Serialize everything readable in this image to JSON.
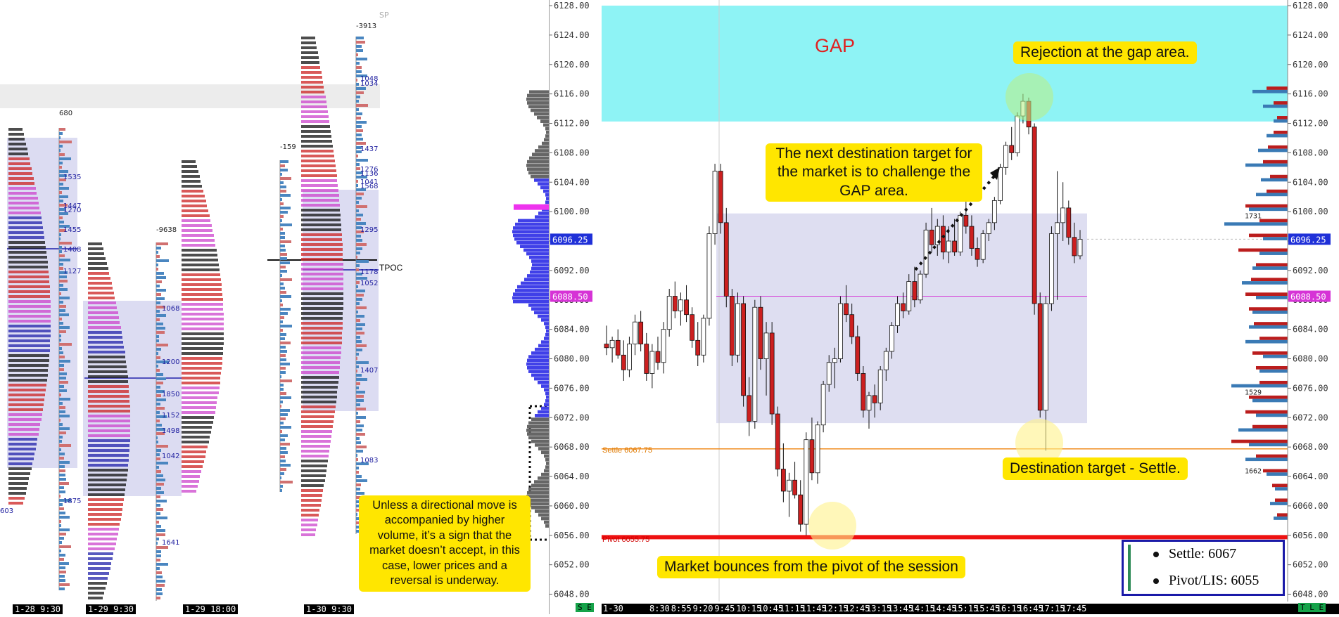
{
  "annotations": {
    "gap": "GAP",
    "gap_rejection": "Rejection at the gap area.",
    "next_target": "The next destination target for the market is to challenge the GAP area.",
    "settle_target": "Destination target - Settle.",
    "pivot_bounce": "Market bounces from the pivot of the session",
    "volume_note": "Unless a directional move is accompanied by higher volume, it’s a sign that the market doesn’t accept, in this case, lower prices and a reversal is underway."
  },
  "levels": {
    "settle_label": "Settle  6067.75",
    "pivot_label": "Pivot  6055.75",
    "tpoc_label": "TPOC",
    "sp_label": "SP"
  },
  "legend": {
    "settle": "Settle: 6067",
    "pivot": "Pivot/LIS: 6055"
  },
  "price_tags": {
    "current": "6096.25",
    "poc": "6088.50",
    "current_right": "6096.25",
    "poc_right": "6088.50"
  },
  "bottom_bar": {
    "se": "S E",
    "tle": "T L E",
    "left_dates": [
      "1-28 9:30",
      "1-29 9:30",
      "1-29 18:00",
      "1-30 9:30"
    ],
    "right_date": "1-30",
    "right_times": [
      "8:30",
      "8:55",
      "9:20",
      "9:45",
      "10:15",
      "10:45",
      "11:15",
      "11:45",
      "12:15",
      "12:45",
      "13:15",
      "13:45",
      "14:15",
      "14:45",
      "15:15",
      "15:45",
      "16:15",
      "16:45",
      "17:15",
      "17:45"
    ]
  },
  "profile_numbers": {
    "p1_top": "680",
    "p2_top": "-9638",
    "p3_top": "-159",
    "p4_top": "-3913",
    "p1_vals": [
      "1535",
      "1447",
      "1270",
      "1455",
      "1408",
      "1127",
      "1875",
      "603"
    ],
    "p2_vals": [
      "1068",
      "1200",
      "1850",
      "1152",
      "1498",
      "1042",
      "1641"
    ],
    "p4_vals": [
      "1048",
      "1034",
      "1437",
      "1276",
      "1136",
      "1041",
      "1568",
      "1295",
      "1178",
      "1052",
      "1407",
      "1083"
    ],
    "right_vals": [
      "1731",
      "1529",
      "1662"
    ]
  },
  "colors": {
    "gap_zone": "#8ef3f5",
    "value_area": "#dadaf0",
    "settle": "#f08a1c",
    "pivot": "#ee1111",
    "poc": "#d633d6",
    "bull_candle": "#ffffff",
    "bear_candle": "#cc1f1f",
    "callout": "#ffe600",
    "volume_bull": "#3a7ab5",
    "volume_bear": "#bb1d1d"
  },
  "chart_data": [
    {
      "type": "candlestick",
      "title": "",
      "ylim": [
        6047,
        6128
      ],
      "y_ticks": [
        6048.0,
        6052.0,
        6056.0,
        6060.0,
        6064.0,
        6068.0,
        6072.0,
        6076.0,
        6080.0,
        6084.0,
        6088.0,
        6092.0,
        6096.0,
        6100.0,
        6104.0,
        6108.0,
        6112.0,
        6116.0,
        6120.0,
        6124.0,
        6128.0
      ],
      "zones": {
        "gap": [
          6112.25,
          6128
        ],
        "value_area": [
          6071.25,
          6099.75
        ]
      },
      "lines": {
        "settle": 6067.75,
        "pivot": 6055.75,
        "poc": 6088.5,
        "current": 6096.25
      },
      "candles": [
        [
          6082.0,
          6084.5,
          6080.5,
          6081.5
        ],
        [
          6081.5,
          6083.0,
          6079.5,
          6082.5
        ],
        [
          6082.5,
          6084.0,
          6080.0,
          6080.5
        ],
        [
          6080.5,
          6082.5,
          6077.0,
          6078.5
        ],
        [
          6078.5,
          6083.0,
          6077.5,
          6082.0
        ],
        [
          6082.0,
          6086.0,
          6080.5,
          6085.0
        ],
        [
          6085.0,
          6086.5,
          6081.0,
          6082.0
        ],
        [
          6082.0,
          6083.5,
          6077.0,
          6078.0
        ],
        [
          6078.0,
          6082.0,
          6076.0,
          6081.0
        ],
        [
          6081.0,
          6083.0,
          6078.5,
          6079.5
        ],
        [
          6079.5,
          6085.0,
          6078.0,
          6084.0
        ],
        [
          6084.0,
          6089.5,
          6083.0,
          6088.5
        ],
        [
          6088.5,
          6090.5,
          6085.5,
          6086.5
        ],
        [
          6086.5,
          6089.0,
          6084.5,
          6088.0
        ],
        [
          6088.0,
          6090.0,
          6085.0,
          6086.0
        ],
        [
          6086.0,
          6087.0,
          6081.5,
          6082.5
        ],
        [
          6082.5,
          6085.0,
          6079.0,
          6080.5
        ],
        [
          6080.5,
          6086.0,
          6079.5,
          6085.5
        ],
        [
          6085.5,
          6098.0,
          6084.5,
          6097.0
        ],
        [
          6097.0,
          6106.5,
          6095.5,
          6105.5
        ],
        [
          6105.5,
          6106.5,
          6097.0,
          6098.5
        ],
        [
          6098.5,
          6100.5,
          6087.0,
          6088.5
        ],
        [
          6088.5,
          6089.5,
          6079.0,
          6080.5
        ],
        [
          6080.5,
          6089.0,
          6079.5,
          6087.5
        ],
        [
          6087.5,
          6088.5,
          6073.5,
          6075.0
        ],
        [
          6075.0,
          6077.5,
          6069.5,
          6071.5
        ],
        [
          6071.5,
          6088.0,
          6070.5,
          6087.0
        ],
        [
          6087.0,
          6088.5,
          6078.5,
          6080.0
        ],
        [
          6080.0,
          6085.0,
          6075.0,
          6083.5
        ],
        [
          6083.5,
          6085.0,
          6071.0,
          6072.5
        ],
        [
          6072.5,
          6073.5,
          6064.0,
          6065.0
        ],
        [
          6065.0,
          6068.5,
          6060.5,
          6062.0
        ],
        [
          6062.0,
          6064.5,
          6058.5,
          6063.5
        ],
        [
          6063.5,
          6066.0,
          6061.0,
          6061.5
        ],
        [
          6061.5,
          6063.5,
          6056.5,
          6057.5
        ],
        [
          6057.5,
          6070.0,
          6056.0,
          6069.0
        ],
        [
          6069.0,
          6072.0,
          6063.5,
          6064.5
        ],
        [
          6064.5,
          6071.5,
          6063.0,
          6071.0
        ],
        [
          6071.0,
          6077.0,
          6070.0,
          6076.5
        ],
        [
          6076.5,
          6080.5,
          6075.5,
          6079.5
        ],
        [
          6079.5,
          6081.5,
          6076.0,
          6080.0
        ],
        [
          6080.0,
          6088.5,
          6079.5,
          6087.5
        ],
        [
          6087.5,
          6090.0,
          6085.0,
          6086.0
        ],
        [
          6086.0,
          6087.5,
          6082.0,
          6083.0
        ],
        [
          6083.0,
          6084.5,
          6077.0,
          6078.0
        ],
        [
          6078.0,
          6079.0,
          6072.0,
          6073.0
        ],
        [
          6073.0,
          6075.5,
          6070.5,
          6075.0
        ],
        [
          6075.0,
          6076.5,
          6072.0,
          6074.0
        ],
        [
          6074.0,
          6079.0,
          6073.0,
          6078.5
        ],
        [
          6078.5,
          6081.5,
          6077.0,
          6081.0
        ],
        [
          6081.0,
          6085.0,
          6080.0,
          6084.5
        ],
        [
          6084.5,
          6088.5,
          6083.5,
          6087.5
        ],
        [
          6087.5,
          6089.0,
          6085.5,
          6086.5
        ],
        [
          6086.5,
          6091.5,
          6086.0,
          6090.5
        ],
        [
          6090.5,
          6092.5,
          6087.0,
          6088.0
        ],
        [
          6088.0,
          6092.0,
          6087.5,
          6091.5
        ],
        [
          6091.5,
          6098.5,
          6091.0,
          6097.5
        ],
        [
          6097.5,
          6100.5,
          6094.5,
          6095.5
        ],
        [
          6095.5,
          6099.0,
          6094.0,
          6098.0
        ],
        [
          6098.0,
          6099.5,
          6093.5,
          6094.5
        ],
        [
          6094.5,
          6098.0,
          6093.0,
          6096.0
        ],
        [
          6096.0,
          6099.0,
          6094.0,
          6094.5
        ],
        [
          6094.5,
          6100.0,
          6094.0,
          6099.5
        ],
        [
          6099.5,
          6101.5,
          6097.0,
          6098.0
        ],
        [
          6098.0,
          6099.5,
          6094.0,
          6095.0
        ],
        [
          6095.0,
          6096.5,
          6092.5,
          6093.5
        ],
        [
          6093.5,
          6097.5,
          6093.0,
          6097.0
        ],
        [
          6097.0,
          6099.0,
          6096.0,
          6098.5
        ],
        [
          6098.5,
          6102.0,
          6097.5,
          6101.5
        ],
        [
          6101.5,
          6106.5,
          6101.0,
          6106.0
        ],
        [
          6106.0,
          6109.5,
          6105.0,
          6109.0
        ],
        [
          6109.0,
          6111.5,
          6107.0,
          6108.0
        ],
        [
          6108.0,
          6113.5,
          6107.5,
          6113.0
        ],
        [
          6113.0,
          6116.0,
          6112.0,
          6115.0
        ],
        [
          6115.0,
          6115.5,
          6110.5,
          6111.5
        ],
        [
          6111.5,
          6112.0,
          6086.0,
          6087.5
        ],
        [
          6087.5,
          6089.0,
          6072.0,
          6073.0
        ],
        [
          6073.0,
          6088.5,
          6067.5,
          6087.5
        ],
        [
          6087.5,
          6098.0,
          6086.5,
          6097.0
        ],
        [
          6097.0,
          6105.5,
          6088.0,
          6098.5
        ],
        [
          6098.5,
          6104.0,
          6096.0,
          6100.5
        ],
        [
          6100.5,
          6101.5,
          6095.5,
          6096.5
        ],
        [
          6096.5,
          6098.5,
          6093.0,
          6094.0
        ],
        [
          6094.0,
          6097.5,
          6093.5,
          6096.25
        ]
      ],
      "volume_profile": {
        "bins": [
          6058,
          6060,
          6062,
          6064,
          6066,
          6068,
          6070,
          6072,
          6074,
          6076,
          6078,
          6080,
          6082,
          6084,
          6086,
          6088,
          6090,
          6092,
          6094,
          6096,
          6098,
          6100,
          6102,
          6104,
          6106,
          6108,
          6110,
          6112,
          6114,
          6116
        ],
        "bull": [
          20,
          25,
          18,
          30,
          60,
          55,
          70,
          45,
          50,
          80,
          40,
          35,
          60,
          55,
          50,
          45,
          65,
          50,
          40,
          35,
          90,
          55,
          45,
          38,
          60,
          42,
          30,
          20,
          35,
          50
        ],
        "bear": [
          15,
          18,
          22,
          35,
          45,
          80,
          50,
          60,
          55,
          40,
          45,
          50,
          40,
          48,
          55,
          60,
          52,
          45,
          70,
          55,
          40,
          60,
          30,
          25,
          35,
          28,
          20,
          15,
          20,
          30
        ]
      }
    }
  ]
}
